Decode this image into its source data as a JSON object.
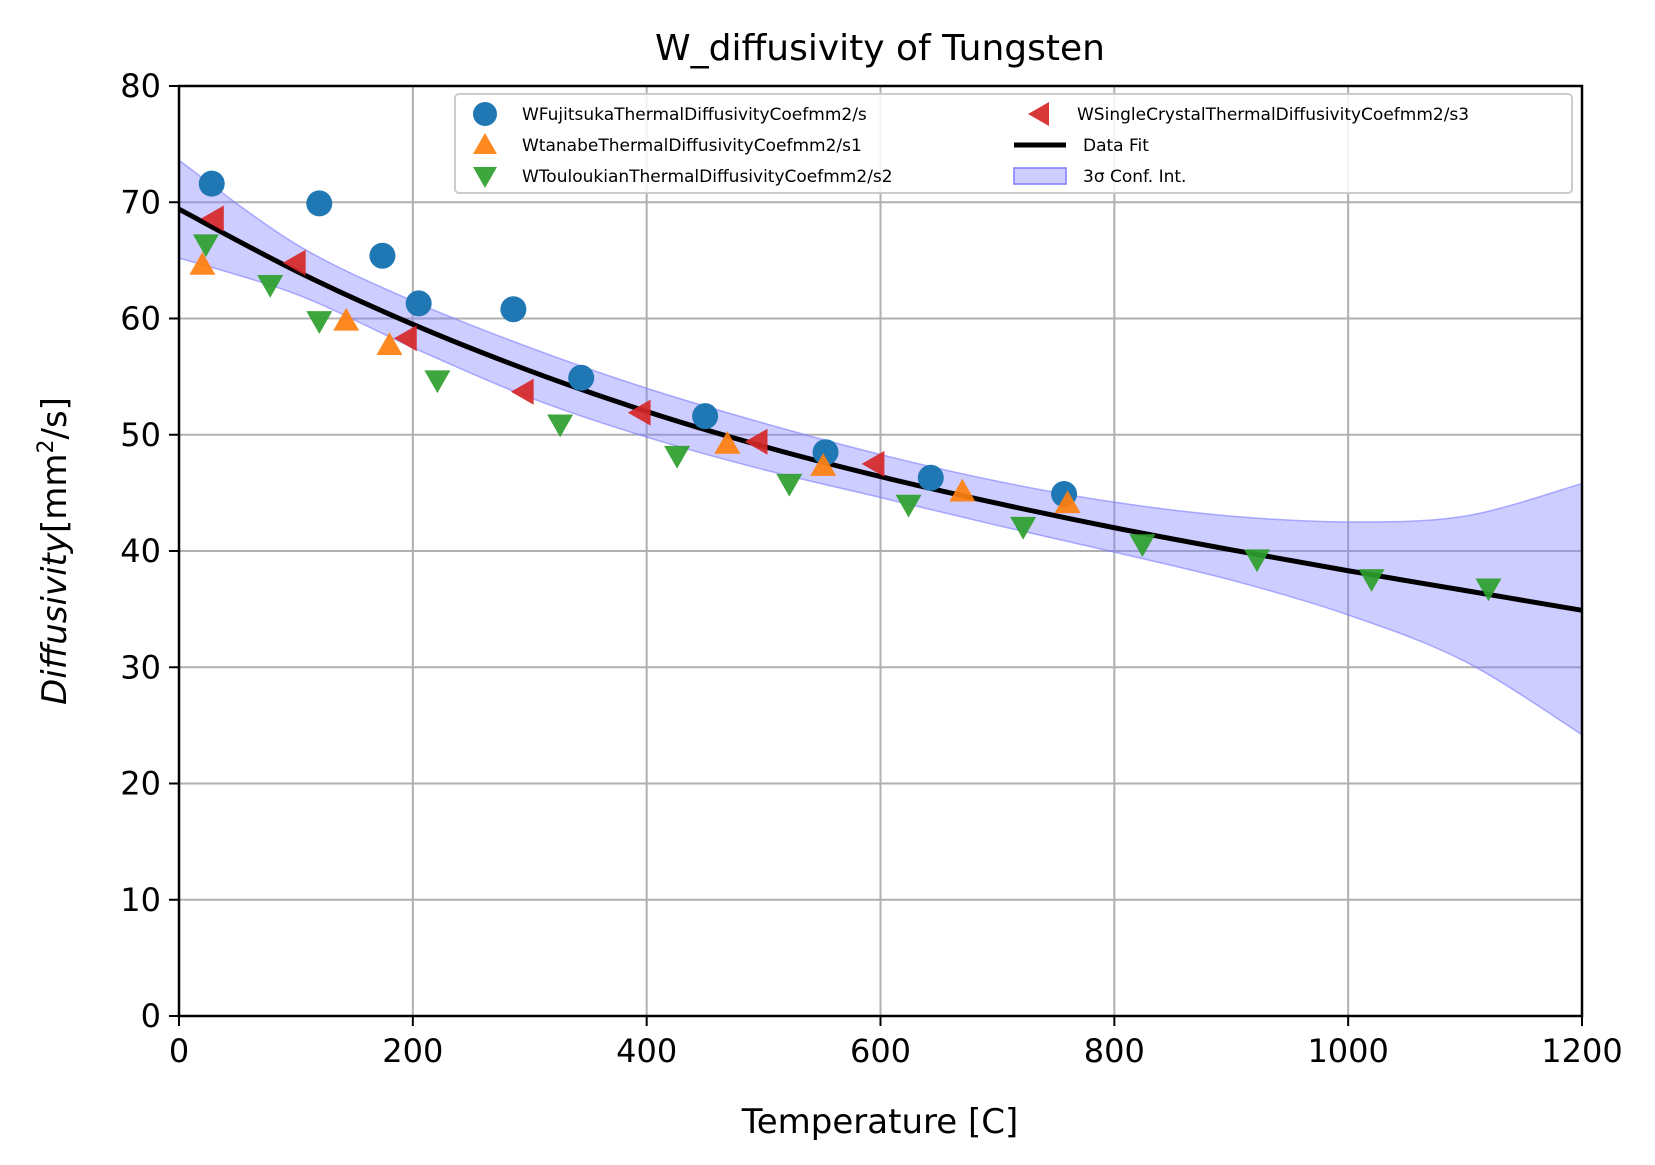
{
  "chart_data": {
    "type": "scatter",
    "title": "W_diffusivity of Tungsten",
    "xlabel": "Temperature [C]",
    "ylabel": {
      "italic": "Diffusivity",
      "pre": "[mm",
      "sup": "2",
      "post": "/s]"
    },
    "xlim": [
      0,
      1200
    ],
    "ylim": [
      0,
      80
    ],
    "xticks": [
      0,
      200,
      400,
      600,
      800,
      1000,
      1200
    ],
    "yticks": [
      0,
      10,
      20,
      30,
      40,
      50,
      60,
      70,
      80
    ],
    "grid": true,
    "legend_position": "upper-right",
    "series": [
      {
        "name": "WFujitsukaThermalDiffusivityCoefmm2/s",
        "marker": "circle",
        "color": "#1f77b4",
        "x": [
          28,
          120,
          174,
          205,
          286,
          344,
          450,
          553,
          643,
          757
        ],
        "y": [
          71.6,
          69.9,
          65.4,
          61.3,
          60.8,
          54.9,
          51.6,
          48.5,
          46.3,
          44.9
        ]
      },
      {
        "name": "WtanabeThermalDiffusivityCoefmm2/s1",
        "marker": "triangle-up",
        "color": "#ff7f0e",
        "x": [
          20,
          143,
          180,
          469,
          551,
          670,
          760
        ],
        "y": [
          64.6,
          59.8,
          57.7,
          49.2,
          47.3,
          45.1,
          44.1
        ]
      },
      {
        "name": "WTouloukianThermalDiffusivityCoefmm2/s2",
        "marker": "triangle-down",
        "color": "#2ca02c",
        "x": [
          23,
          78,
          120,
          221,
          326,
          426,
          522,
          624,
          722,
          824,
          922,
          1020,
          1120
        ],
        "y": [
          66.4,
          62.9,
          59.8,
          54.7,
          50.9,
          48.2,
          45.8,
          44.0,
          42.1,
          40.6,
          39.3,
          37.6,
          36.8
        ]
      },
      {
        "name": "WSingleCrystalThermalDiffusivityCoefmm2/s3",
        "marker": "triangle-left",
        "color": "#d62728",
        "x": [
          30,
          100,
          195,
          295,
          395,
          495,
          595
        ],
        "y": [
          68.6,
          64.8,
          58.3,
          53.7,
          51.9,
          49.4,
          47.5
        ]
      },
      {
        "name": "Data Fit",
        "type": "line",
        "color": "#000000",
        "x": [
          0,
          100,
          200,
          300,
          400,
          500,
          600,
          700,
          800,
          900,
          1000,
          1100,
          1200
        ],
        "y": [
          69.4,
          64.1,
          59.5,
          55.5,
          52.0,
          49.0,
          46.4,
          44.1,
          42.0,
          40.1,
          38.3,
          36.6,
          34.9
        ]
      },
      {
        "name": "3σ Conf. Int.",
        "type": "band",
        "color": "#7b7bff",
        "x": [
          0,
          100,
          200,
          300,
          400,
          500,
          600,
          700,
          800,
          900,
          1000,
          1100,
          1200
        ],
        "lower": [
          65.2,
          62.1,
          57.5,
          53.2,
          49.8,
          47.0,
          44.6,
          42.2,
          39.9,
          37.5,
          34.5,
          30.5,
          24.2
        ],
        "upper": [
          73.6,
          66.4,
          61.5,
          57.5,
          54.0,
          51.0,
          48.3,
          46.0,
          44.2,
          43.0,
          42.5,
          43.0,
          45.8
        ]
      }
    ]
  }
}
